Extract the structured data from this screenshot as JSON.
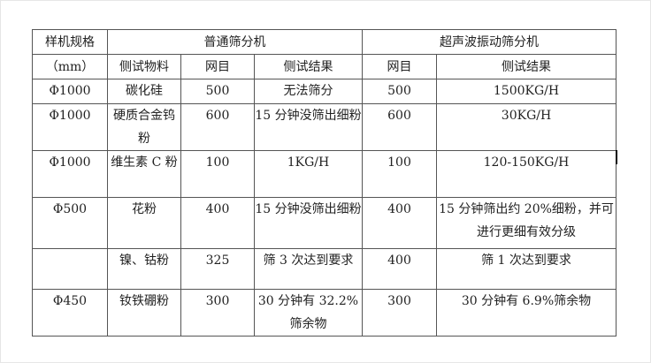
{
  "header": {
    "spec_label": "样机规格",
    "unit_label": "（mm）",
    "normal_group": "普通筛分机",
    "ultrasonic_group": "超声波振动筛分机",
    "material_label": "侧试物料",
    "mesh_label": "网目",
    "result_label": "侧试结果"
  },
  "rows": [
    {
      "spec": "Φ1000",
      "material": "碳化硅",
      "normal_mesh": "500",
      "normal_result": "无法筛分",
      "ultra_mesh": "500",
      "ultra_result": "1500KG/H"
    },
    {
      "spec": "Φ1000",
      "material": "硬质合金钨粉",
      "normal_mesh": "600",
      "normal_result": "15 分钟没筛出细粉",
      "ultra_mesh": "600",
      "ultra_result": "30KG/H"
    },
    {
      "spec": "Φ1000",
      "material": "维生素 C 粉",
      "normal_mesh": "100",
      "normal_result": "1KG/H",
      "ultra_mesh": "100",
      "ultra_result": "120-150KG/H"
    },
    {
      "spec": "Φ500",
      "material": "花粉",
      "normal_mesh": "400",
      "normal_result": "15 分钟没筛出细粉",
      "ultra_mesh": "400",
      "ultra_result": "15 分钟筛出约 20%细粉，并可进行更细有效分级"
    },
    {
      "spec": "",
      "material": "镍、钴粉",
      "normal_mesh": "325",
      "normal_result": "筛 3 次达到要求",
      "ultra_mesh": "400",
      "ultra_result": "筛 1 次达到要求"
    },
    {
      "spec": "Φ450",
      "material": "钕铁硼粉",
      "normal_mesh": "300",
      "normal_result": "30 分钟有 32.2%筛余物",
      "ultra_mesh": "300",
      "ultra_result": "30 分钟有 6.9%筛余物"
    }
  ]
}
